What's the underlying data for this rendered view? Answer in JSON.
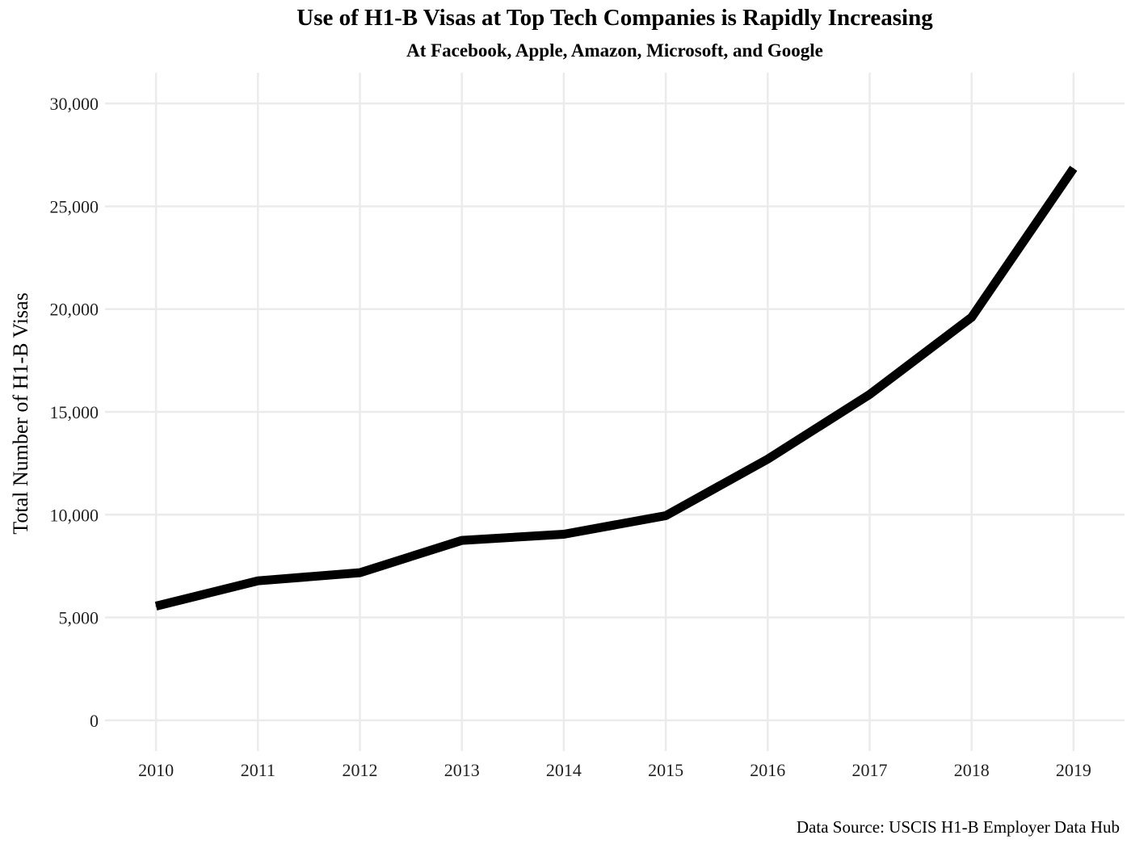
{
  "chart_data": {
    "type": "line",
    "title": "Use of H1-B Visas at Top Tech Companies is Rapidly Increasing",
    "subtitle": "At Facebook, Apple, Amazon, Microsoft, and Google",
    "xlabel": "",
    "ylabel": "Total Number of H1-B Visas",
    "caption": "Data Source: USCIS H1-B Employer Data Hub",
    "x": [
      2010,
      2011,
      2012,
      2013,
      2014,
      2015,
      2016,
      2017,
      2018,
      2019
    ],
    "x_tick_labels": [
      "2010",
      "2011",
      "2012",
      "2013",
      "2014",
      "2015",
      "2016",
      "2017",
      "2018",
      "2019"
    ],
    "series": [
      {
        "values": [
          5550,
          6780,
          7180,
          8750,
          9050,
          9950,
          12700,
          15850,
          19600,
          26850
        ]
      }
    ],
    "y_ticks": [
      0,
      5000,
      10000,
      15000,
      20000,
      25000,
      30000
    ],
    "y_tick_labels": [
      "0",
      "5,000",
      "10,000",
      "15,000",
      "20,000",
      "25,000",
      "30,000"
    ],
    "xlim": [
      2009.5,
      2019.5
    ],
    "ylim": [
      -1500,
      31500
    ],
    "grid": true,
    "legend": "none",
    "line_color": "#000000",
    "grid_color": "#ebebeb"
  }
}
